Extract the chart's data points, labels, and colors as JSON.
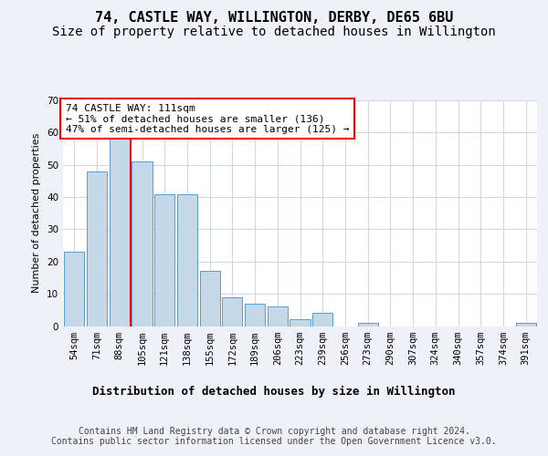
{
  "title": "74, CASTLE WAY, WILLINGTON, DERBY, DE65 6BU",
  "subtitle": "Size of property relative to detached houses in Willington",
  "xlabel": "Distribution of detached houses by size in Willington",
  "ylabel": "Number of detached properties",
  "categories": [
    "54sqm",
    "71sqm",
    "88sqm",
    "105sqm",
    "121sqm",
    "138sqm",
    "155sqm",
    "172sqm",
    "189sqm",
    "206sqm",
    "223sqm",
    "239sqm",
    "256sqm",
    "273sqm",
    "290sqm",
    "307sqm",
    "324sqm",
    "340sqm",
    "357sqm",
    "374sqm",
    "391sqm"
  ],
  "values": [
    23,
    48,
    58,
    51,
    41,
    41,
    17,
    9,
    7,
    6,
    2,
    4,
    0,
    1,
    0,
    0,
    0,
    0,
    0,
    0,
    1
  ],
  "bar_color": "#c5d8e8",
  "bar_edge_color": "#5a9ec9",
  "grid_color": "#d0d8e8",
  "background_color": "#eef2f8",
  "plot_bg_color": "#ffffff",
  "vline_x_index": 3,
  "vline_color": "red",
  "annotation_text": "74 CASTLE WAY: 111sqm\n← 51% of detached houses are smaller (136)\n47% of semi-detached houses are larger (125) →",
  "annotation_box_color": "white",
  "annotation_box_edge": "red",
  "ylim": [
    0,
    70
  ],
  "yticks": [
    0,
    10,
    20,
    30,
    40,
    50,
    60,
    70
  ],
  "footer": "Contains HM Land Registry data © Crown copyright and database right 2024.\nContains public sector information licensed under the Open Government Licence v3.0.",
  "title_fontsize": 11,
  "subtitle_fontsize": 10,
  "xlabel_fontsize": 9,
  "ylabel_fontsize": 8,
  "tick_fontsize": 7.5,
  "annotation_fontsize": 8,
  "footer_fontsize": 7
}
